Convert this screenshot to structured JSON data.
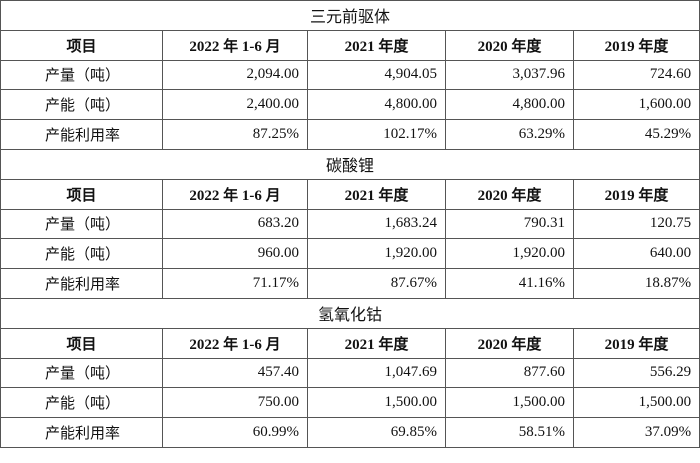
{
  "sections": [
    {
      "title": "三元前驱体",
      "header": [
        "项目",
        "2022 年 1-6 月",
        "2021 年度",
        "2020 年度",
        "2019 年度"
      ],
      "rows": [
        [
          "产量（吨）",
          "2,094.00",
          "4,904.05",
          "3,037.96",
          "724.60"
        ],
        [
          "产能（吨）",
          "2,400.00",
          "4,800.00",
          "4,800.00",
          "1,600.00"
        ],
        [
          "产能利用率",
          "87.25%",
          "102.17%",
          "63.29%",
          "45.29%"
        ]
      ]
    },
    {
      "title": "碳酸锂",
      "header": [
        "项目",
        "2022 年 1-6 月",
        "2021 年度",
        "2020 年度",
        "2019 年度"
      ],
      "rows": [
        [
          "产量（吨）",
          "683.20",
          "1,683.24",
          "790.31",
          "120.75"
        ],
        [
          "产能（吨）",
          "960.00",
          "1,920.00",
          "1,920.00",
          "640.00"
        ],
        [
          "产能利用率",
          "71.17%",
          "87.67%",
          "41.16%",
          "18.87%"
        ]
      ]
    },
    {
      "title": "氢氧化钴",
      "header": [
        "项目",
        "2022 年 1-6 月",
        "2021 年度",
        "2020 年度",
        "2019 年度"
      ],
      "rows": [
        [
          "产量（吨）",
          "457.40",
          "1,047.69",
          "877.60",
          "556.29"
        ],
        [
          "产能（吨）",
          "750.00",
          "1,500.00",
          "1,500.00",
          "1,500.00"
        ],
        [
          "产能利用率",
          "60.99%",
          "69.85%",
          "58.51%",
          "37.09%"
        ]
      ]
    }
  ]
}
